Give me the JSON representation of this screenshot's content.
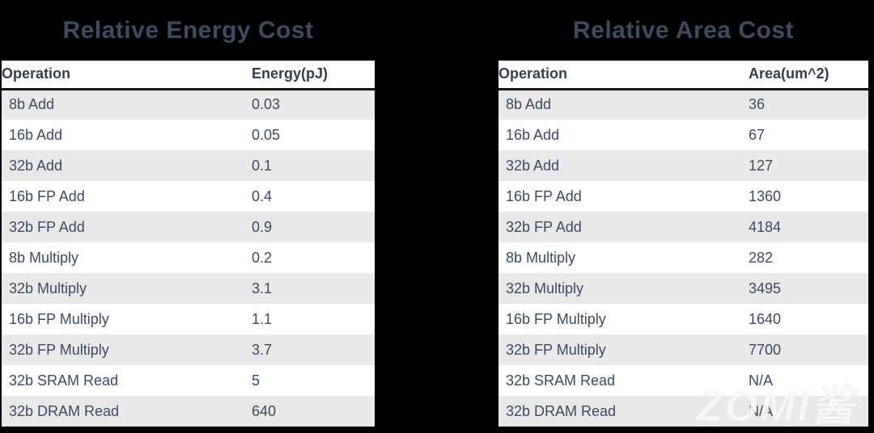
{
  "colors": {
    "background": "#000000",
    "title_text": "#3E4B60",
    "header_text": "#333E52",
    "body_text": "#3C4A61",
    "row_alt_gray": "#E9E9E9",
    "row_white": "#FFFFFF",
    "header_rule": "#141414"
  },
  "watermark": {
    "text": "ZOMI酱"
  },
  "chart_data": [
    {
      "type": "table",
      "title": "Relative Energy Cost",
      "columns": [
        "Operation",
        "Energy(pJ)"
      ],
      "rows": [
        [
          "8b Add",
          "0.03"
        ],
        [
          "16b Add",
          "0.05"
        ],
        [
          "32b Add",
          "0.1"
        ],
        [
          "16b FP Add",
          "0.4"
        ],
        [
          "32b FP Add",
          "0.9"
        ],
        [
          "8b Multiply",
          "0.2"
        ],
        [
          "32b Multiply",
          "3.1"
        ],
        [
          "16b FP Multiply",
          "1.1"
        ],
        [
          "32b FP Multiply",
          "3.7"
        ],
        [
          "32b SRAM Read",
          "5"
        ],
        [
          "32b DRAM Read",
          "640"
        ]
      ]
    },
    {
      "type": "table",
      "title": "Relative Area Cost",
      "columns": [
        "Operation",
        "Area(um^2)"
      ],
      "rows": [
        [
          "8b Add",
          "36"
        ],
        [
          "16b Add",
          "67"
        ],
        [
          "32b Add",
          "127"
        ],
        [
          "16b FP Add",
          "1360"
        ],
        [
          "32b FP Add",
          "4184"
        ],
        [
          "8b Multiply",
          "282"
        ],
        [
          "32b Multiply",
          "3495"
        ],
        [
          "16b FP Multiply",
          "1640"
        ],
        [
          "32b FP Multiply",
          "7700"
        ],
        [
          "32b SRAM Read",
          "N/A"
        ],
        [
          "32b DRAM Read",
          "N/A"
        ]
      ]
    }
  ]
}
